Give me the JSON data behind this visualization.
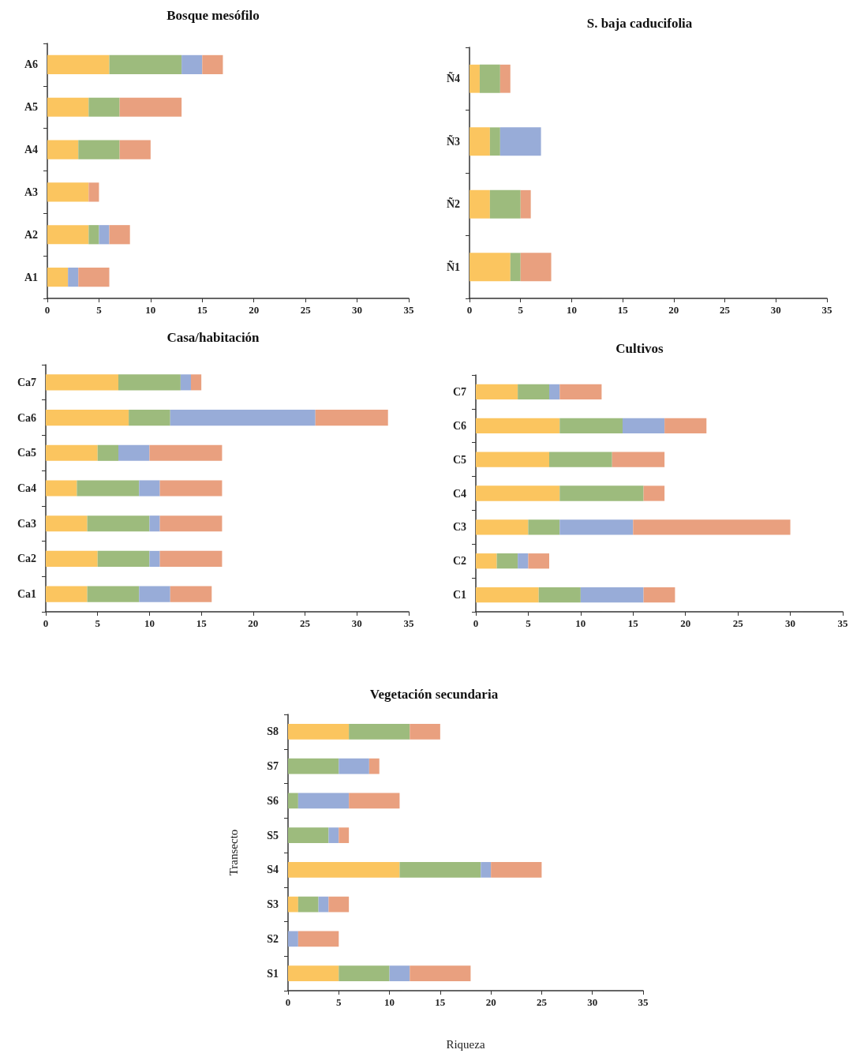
{
  "chart_data": [
    {
      "type": "bar",
      "title": "Bosque mesófilo",
      "orientation": "horizontal",
      "stacked": true,
      "categories": [
        "A6",
        "A5",
        "A4",
        "A3",
        "A2",
        "A1"
      ],
      "xlim": [
        0,
        35
      ],
      "xticks": [
        0,
        5,
        10,
        15,
        20,
        25,
        30,
        35
      ],
      "grid": false,
      "series": [
        {
          "color": "#fbc55f",
          "values": [
            6,
            4,
            3,
            4,
            4,
            2
          ]
        },
        {
          "color": "#9dbb7d",
          "values": [
            7,
            3,
            4,
            0,
            1,
            0
          ]
        },
        {
          "color": "#98acd8",
          "values": [
            2,
            0,
            0,
            0,
            1,
            1
          ]
        },
        {
          "color": "#e9a07f",
          "values": [
            2,
            6,
            3,
            1,
            2,
            3
          ]
        }
      ]
    },
    {
      "type": "bar",
      "title": "S. baja caducifolia",
      "orientation": "horizontal",
      "stacked": true,
      "categories": [
        "Ñ4",
        "Ñ3",
        "Ñ2",
        "Ñ1"
      ],
      "xlim": [
        0,
        35
      ],
      "xticks": [
        0,
        5,
        10,
        15,
        20,
        25,
        30,
        35
      ],
      "grid": false,
      "series": [
        {
          "color": "#fbc55f",
          "values": [
            1,
            2,
            2,
            4
          ]
        },
        {
          "color": "#9dbb7d",
          "values": [
            2,
            1,
            3,
            1
          ]
        },
        {
          "color": "#98acd8",
          "values": [
            0,
            4,
            0,
            0
          ]
        },
        {
          "color": "#e9a07f",
          "values": [
            1,
            0,
            1,
            3
          ]
        }
      ]
    },
    {
      "type": "bar",
      "title": "Casa/habitación",
      "orientation": "horizontal",
      "stacked": true,
      "categories": [
        "Ca7",
        "Ca6",
        "Ca5",
        "Ca4",
        "Ca3",
        "Ca2",
        "Ca1"
      ],
      "xlim": [
        0,
        35
      ],
      "xticks": [
        0,
        5,
        10,
        15,
        20,
        25,
        30,
        35
      ],
      "grid": false,
      "series": [
        {
          "color": "#fbc55f",
          "values": [
            7,
            8,
            5,
            3,
            4,
            5,
            4
          ]
        },
        {
          "color": "#9dbb7d",
          "values": [
            6,
            4,
            2,
            6,
            6,
            5,
            5
          ]
        },
        {
          "color": "#98acd8",
          "values": [
            1,
            14,
            3,
            2,
            1,
            1,
            3
          ]
        },
        {
          "color": "#e9a07f",
          "values": [
            1,
            7,
            7,
            6,
            6,
            6,
            4
          ]
        }
      ]
    },
    {
      "type": "bar",
      "title": "Cultivos",
      "orientation": "horizontal",
      "stacked": true,
      "categories": [
        "C7",
        "C6",
        "C5",
        "C4",
        "C3",
        "C2",
        "C1"
      ],
      "xlim": [
        0,
        35
      ],
      "xticks": [
        0,
        5,
        10,
        15,
        20,
        25,
        30,
        35
      ],
      "grid": false,
      "series": [
        {
          "color": "#fbc55f",
          "values": [
            4,
            8,
            7,
            8,
            5,
            2,
            6
          ]
        },
        {
          "color": "#9dbb7d",
          "values": [
            3,
            6,
            6,
            8,
            3,
            2,
            4
          ]
        },
        {
          "color": "#98acd8",
          "values": [
            1,
            4,
            0,
            0,
            7,
            1,
            6
          ]
        },
        {
          "color": "#e9a07f",
          "values": [
            4,
            4,
            5,
            2,
            15,
            2,
            3
          ]
        }
      ]
    },
    {
      "type": "bar",
      "title": "Vegetación secundaria",
      "xlabel": "Riqueza",
      "ylabel": "Transecto",
      "orientation": "horizontal",
      "stacked": true,
      "categories": [
        "S8",
        "S7",
        "S6",
        "S5",
        "S4",
        "S3",
        "S2",
        "S1"
      ],
      "xlim": [
        0,
        35
      ],
      "xticks": [
        0,
        5,
        10,
        15,
        20,
        25,
        30,
        35
      ],
      "grid": false,
      "series": [
        {
          "color": "#fbc55f",
          "values": [
            6,
            0,
            0,
            0,
            11,
            1,
            0,
            5
          ]
        },
        {
          "color": "#9dbb7d",
          "values": [
            6,
            5,
            1,
            4,
            8,
            2,
            0,
            5
          ]
        },
        {
          "color": "#98acd8",
          "values": [
            0,
            3,
            5,
            1,
            1,
            1,
            1,
            2
          ]
        },
        {
          "color": "#e9a07f",
          "values": [
            3,
            1,
            5,
            1,
            5,
            2,
            4,
            6
          ]
        }
      ]
    }
  ]
}
